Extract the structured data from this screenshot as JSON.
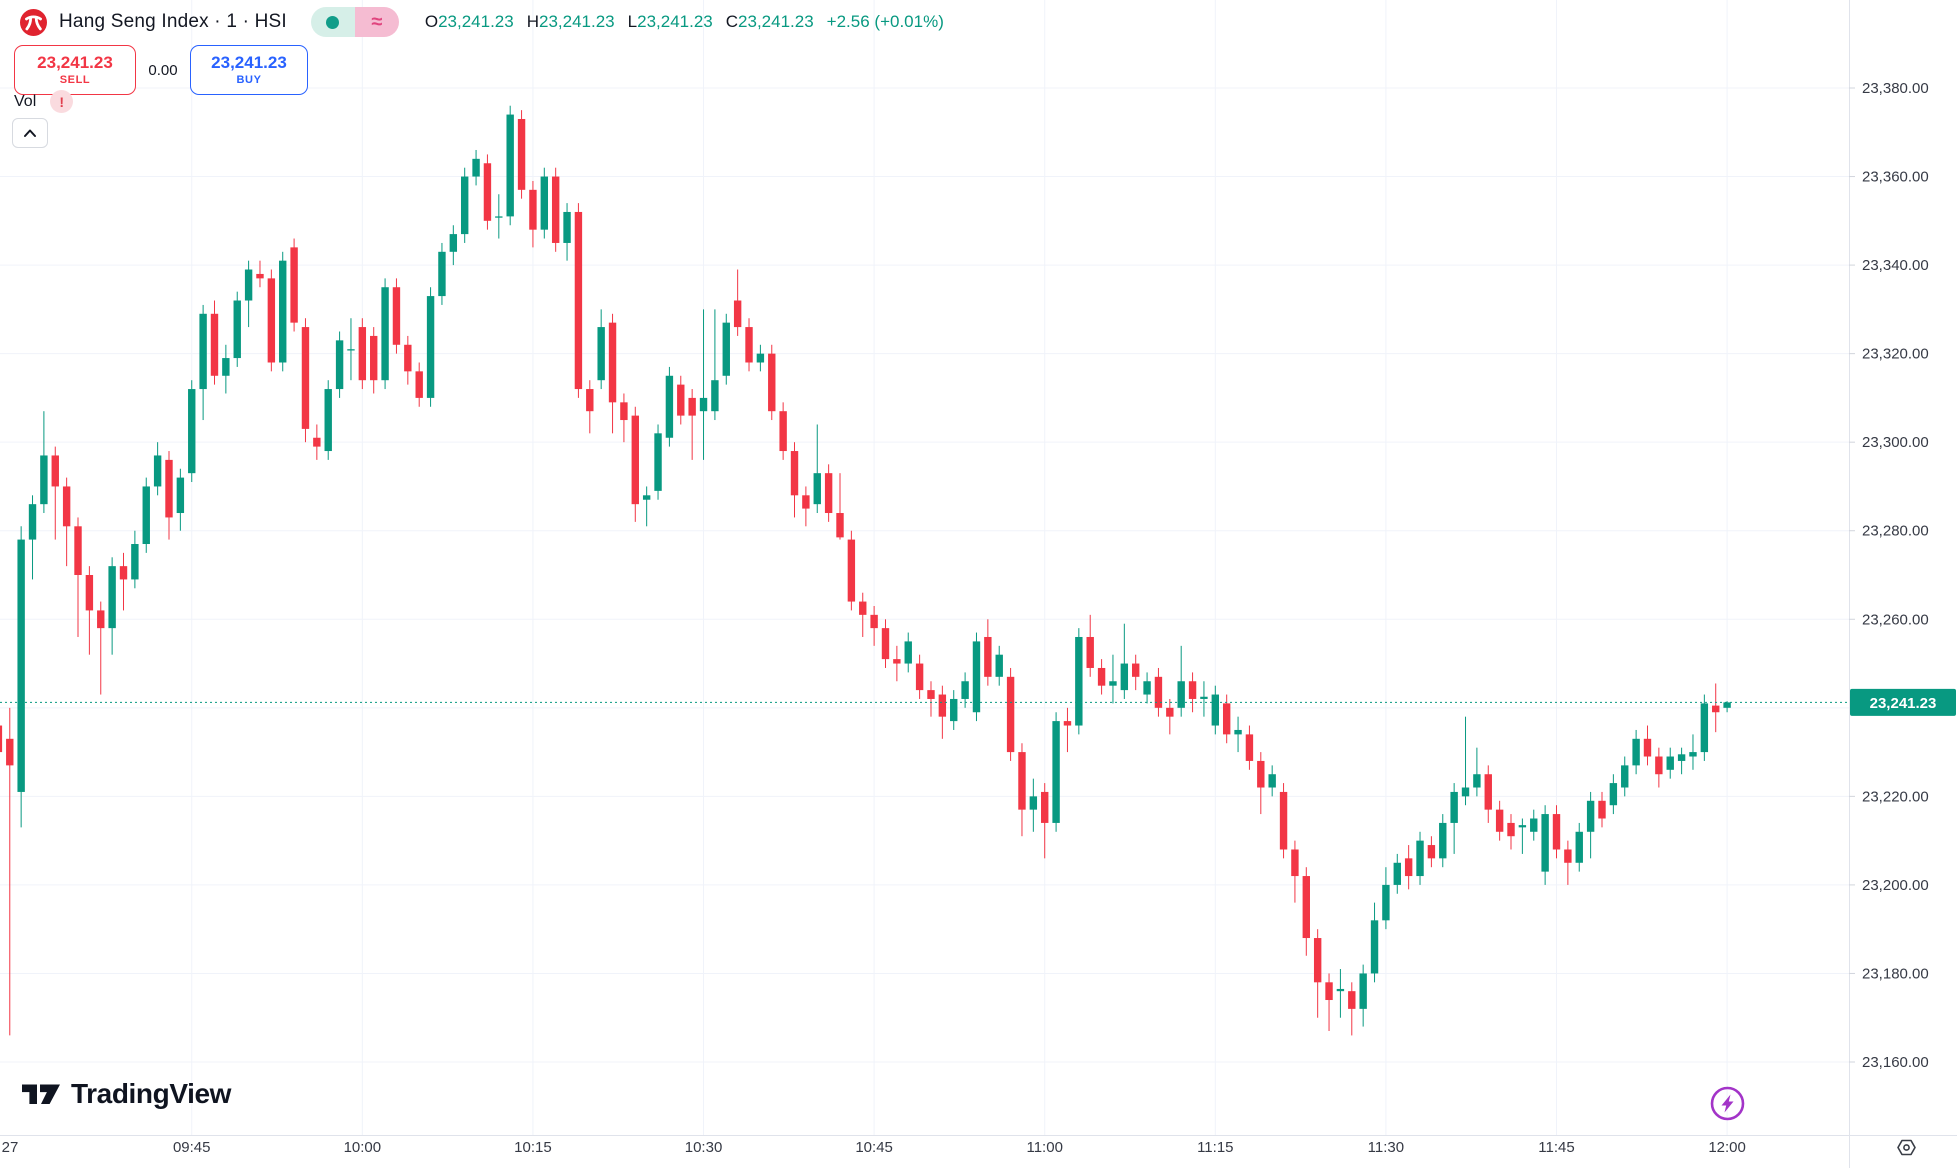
{
  "header": {
    "symbol_title": "Hang Seng Index · 1 · HSI",
    "ohlc": {
      "o_label": "O",
      "o_value": "23,241.23",
      "h_label": "H",
      "h_value": "23,241.23",
      "l_label": "L",
      "l_value": "23,241.23",
      "c_label": "C",
      "c_value": "23,241.23",
      "change": "+2.56 (+0.01%)"
    },
    "status": {
      "delayed_symbol": "≈"
    }
  },
  "trade_panel": {
    "sell_price": "23,241.23",
    "sell_label": "SELL",
    "spread": "0.00",
    "buy_price": "23,241.23",
    "buy_label": "BUY"
  },
  "indicator": {
    "label": "Vol",
    "warning": "!"
  },
  "watermark": "TradingView",
  "colors": {
    "up": "#089981",
    "down": "#f23645",
    "grid": "#f0f3fa",
    "axis_text": "#363a45",
    "axis_border": "#e0e3eb",
    "tick": "#d1d4dc",
    "tag_bg": "#089981",
    "tag_text": "#ffffff",
    "purple": "#a334c8"
  },
  "price_axis": {
    "last_price_text": "23,241.23",
    "ticks": [
      {
        "value": 23380,
        "text": "23,380.00"
      },
      {
        "value": 23360,
        "text": "23,360.00"
      },
      {
        "value": 23340,
        "text": "23,340.00"
      },
      {
        "value": 23320,
        "text": "23,320.00"
      },
      {
        "value": 23300,
        "text": "23,300.00"
      },
      {
        "value": 23280,
        "text": "23,280.00"
      },
      {
        "value": 23260,
        "text": "23,260.00"
      },
      {
        "value": 23240,
        "text": ""
      },
      {
        "value": 23220,
        "text": "23,220.00"
      },
      {
        "value": 23200,
        "text": "23,200.00"
      },
      {
        "value": 23180,
        "text": "23,180.00"
      },
      {
        "value": 23160,
        "text": "23,160.00"
      }
    ]
  },
  "time_axis": {
    "labels": [
      {
        "text": "27",
        "minute": 1,
        "grid": false
      },
      {
        "text": "09:45",
        "minute": 17,
        "grid": true
      },
      {
        "text": "10:00",
        "minute": 32,
        "grid": true
      },
      {
        "text": "10:15",
        "minute": 47,
        "grid": true
      },
      {
        "text": "10:30",
        "minute": 62,
        "grid": true
      },
      {
        "text": "10:45",
        "minute": 77,
        "grid": true
      },
      {
        "text": "11:00",
        "minute": 92,
        "grid": true
      },
      {
        "text": "11:15",
        "minute": 107,
        "grid": true
      },
      {
        "text": "11:30",
        "minute": 122,
        "grid": true
      },
      {
        "text": "11:45",
        "minute": 137,
        "grid": true
      },
      {
        "text": "12:00",
        "minute": 152,
        "grid": true
      }
    ]
  },
  "chart_data": {
    "type": "candlestick",
    "title": "Hang Seng Index",
    "symbol": "HSI",
    "interval": "1 minute",
    "start_time": "09:28",
    "end_time": "12:00",
    "last_price": 23241.23,
    "price_range": [
      23160,
      23380
    ],
    "grid_step": 20,
    "legend_position": "none",
    "grid": true,
    "candles_format": [
      "open",
      "high",
      "low",
      "close"
    ],
    "candles": [
      [
        23236,
        23238,
        23222,
        23230
      ],
      [
        23233,
        23240,
        23166,
        23227
      ],
      [
        23221,
        23281,
        23213,
        23278
      ],
      [
        23278,
        23288,
        23269,
        23286
      ],
      [
        23286,
        23307,
        23284,
        23297
      ],
      [
        23297,
        23299,
        23278,
        23290
      ],
      [
        23290,
        23292,
        23272,
        23281
      ],
      [
        23281,
        23283,
        23256,
        23270
      ],
      [
        23270,
        23272,
        23252,
        23262
      ],
      [
        23262,
        23264,
        23243,
        23258
      ],
      [
        23258,
        23274,
        23252,
        23272
      ],
      [
        23272,
        23275,
        23262,
        23269
      ],
      [
        23269,
        23280,
        23267,
        23277
      ],
      [
        23277,
        23292,
        23275,
        23290
      ],
      [
        23290,
        23300,
        23288,
        23297
      ],
      [
        23296,
        23298,
        23278,
        23283
      ],
      [
        23284,
        23294,
        23280,
        23292
      ],
      [
        23293,
        23314,
        23291,
        23312
      ],
      [
        23312,
        23331,
        23305,
        23329
      ],
      [
        23329,
        23332,
        23313,
        23315
      ],
      [
        23315,
        23322,
        23311,
        23319
      ],
      [
        23319,
        23334,
        23317,
        23332
      ],
      [
        23332,
        23341,
        23326,
        23339
      ],
      [
        23338,
        23341,
        23335,
        23337
      ],
      [
        23337,
        23339,
        23316,
        23318
      ],
      [
        23318,
        23343,
        23316,
        23341
      ],
      [
        23344,
        23346,
        23325,
        23327
      ],
      [
        23326,
        23328,
        23300,
        23303
      ],
      [
        23301,
        23304,
        23296,
        23299
      ],
      [
        23298,
        23314,
        23296,
        23312
      ],
      [
        23312,
        23325,
        23310,
        23323
      ],
      [
        23321,
        23328,
        23314,
        23321
      ],
      [
        23326,
        23328,
        23312,
        23314
      ],
      [
        23324,
        23326,
        23311,
        23314
      ],
      [
        23314,
        23337,
        23312,
        23335
      ],
      [
        23335,
        23337,
        23320,
        23322
      ],
      [
        23322,
        23324,
        23313,
        23316
      ],
      [
        23316,
        23318,
        23308,
        23310
      ],
      [
        23310,
        23335,
        23308,
        23333
      ],
      [
        23333,
        23345,
        23331,
        23343
      ],
      [
        23343,
        23349,
        23340,
        23347
      ],
      [
        23347,
        23362,
        23345,
        23360
      ],
      [
        23360,
        23366,
        23358,
        23364
      ],
      [
        23363,
        23365,
        23348,
        23350
      ],
      [
        23351,
        23356,
        23346,
        23351
      ],
      [
        23351,
        23376,
        23349,
        23374
      ],
      [
        23373,
        23375,
        23355,
        23357
      ],
      [
        23357,
        23359,
        23344,
        23348
      ],
      [
        23348,
        23362,
        23346,
        23360
      ],
      [
        23360,
        23362,
        23343,
        23345
      ],
      [
        23345,
        23354,
        23341,
        23352
      ],
      [
        23352,
        23354,
        23310,
        23312
      ],
      [
        23312,
        23314,
        23302,
        23307
      ],
      [
        23314,
        23330,
        23312,
        23326
      ],
      [
        23327,
        23329,
        23302,
        23309
      ],
      [
        23309,
        23311,
        23300,
        23305
      ],
      [
        23306,
        23308,
        23282,
        23286
      ],
      [
        23287,
        23290,
        23281,
        23288
      ],
      [
        23289,
        23304,
        23287,
        23302
      ],
      [
        23301,
        23317,
        23299,
        23315
      ],
      [
        23313,
        23315,
        23304,
        23306
      ],
      [
        23310,
        23312,
        23296,
        23306
      ],
      [
        23307,
        23330,
        23296,
        23310
      ],
      [
        23307,
        23330,
        23305,
        23314
      ],
      [
        23315,
        23329,
        23313,
        23327
      ],
      [
        23332,
        23339,
        23324,
        23326
      ],
      [
        23326,
        23328,
        23316,
        23318
      ],
      [
        23318,
        23322,
        23316,
        23320
      ],
      [
        23320,
        23322,
        23305,
        23307
      ],
      [
        23307,
        23309,
        23296,
        23298
      ],
      [
        23298,
        23300,
        23283,
        23288
      ],
      [
        23288,
        23290,
        23281,
        23285
      ],
      [
        23286,
        23304,
        23284,
        23293
      ],
      [
        23293,
        23295,
        23282,
        23284
      ],
      [
        23284,
        23293,
        23278,
        23278.5
      ],
      [
        23278,
        23280,
        23262,
        23264
      ],
      [
        23264,
        23266,
        23256,
        23261
      ],
      [
        23261,
        23263,
        23254,
        23258
      ],
      [
        23258,
        23260,
        23249,
        23251
      ],
      [
        23251,
        23254,
        23246,
        23250
      ],
      [
        23250,
        23257,
        23248,
        23255
      ],
      [
        23250,
        23252,
        23242,
        23244
      ],
      [
        23244,
        23246,
        23238,
        23242
      ],
      [
        23243,
        23245,
        23233,
        23238
      ],
      [
        23237,
        23244,
        23235,
        23242
      ],
      [
        23242,
        23248,
        23240,
        23246
      ],
      [
        23239,
        23257,
        23237,
        23255
      ],
      [
        23256,
        23260,
        23245,
        23247
      ],
      [
        23247,
        23254,
        23245,
        23252
      ],
      [
        23247,
        23249,
        23228,
        23230
      ],
      [
        23230,
        23232,
        23211,
        23217
      ],
      [
        23217,
        23224,
        23212,
        23220
      ],
      [
        23221,
        23223,
        23206,
        23214
      ],
      [
        23214,
        23239,
        23212,
        23237
      ],
      [
        23237,
        23240,
        23230,
        23236
      ],
      [
        23236,
        23258,
        23234,
        23256
      ],
      [
        23256,
        23261,
        23247,
        23249
      ],
      [
        23249,
        23251,
        23243,
        23245
      ],
      [
        23245,
        23252,
        23241,
        23246
      ],
      [
        23244,
        23259,
        23242,
        23250
      ],
      [
        23250,
        23252,
        23244,
        23247
      ],
      [
        23243,
        23248,
        23241,
        23246
      ],
      [
        23247,
        23249,
        23238,
        23240
      ],
      [
        23240,
        23242,
        23234,
        23238
      ],
      [
        23240,
        23254,
        23238,
        23246
      ],
      [
        23246,
        23248,
        23239,
        23242
      ],
      [
        23242,
        23246,
        23238,
        23242.5
      ],
      [
        23236,
        23245,
        23234,
        23243
      ],
      [
        23241,
        23243,
        23232,
        23234
      ],
      [
        23234,
        23238,
        23230,
        23235
      ],
      [
        23234,
        23236,
        23226,
        23228
      ],
      [
        23228,
        23230,
        23216,
        23222
      ],
      [
        23222,
        23227,
        23220,
        23225
      ],
      [
        23221,
        23223,
        23206,
        23208
      ],
      [
        23208,
        23210,
        23196,
        23202
      ],
      [
        23202,
        23204,
        23184,
        23188
      ],
      [
        23188,
        23190,
        23170,
        23178
      ],
      [
        23178,
        23180,
        23167,
        23174
      ],
      [
        23176,
        23181,
        23170,
        23176.5
      ],
      [
        23176,
        23178,
        23166,
        23172
      ],
      [
        23172,
        23182,
        23168,
        23180
      ],
      [
        23180,
        23196,
        23178,
        23192
      ],
      [
        23192,
        23204,
        23190,
        23200
      ],
      [
        23200,
        23207,
        23198,
        23205
      ],
      [
        23206,
        23209,
        23199,
        23202
      ],
      [
        23202,
        23212,
        23200,
        23210
      ],
      [
        23209,
        23211,
        23204,
        23206
      ],
      [
        23206,
        23216,
        23204,
        23214
      ],
      [
        23214,
        23223,
        23207,
        23221
      ],
      [
        23220,
        23238,
        23218,
        23222
      ],
      [
        23222,
        23231,
        23220,
        23225
      ],
      [
        23225,
        23227,
        23214,
        23217
      ],
      [
        23217,
        23219,
        23210,
        23212
      ],
      [
        23214,
        23216,
        23208,
        23211
      ],
      [
        23213,
        23215,
        23207,
        23213.5
      ],
      [
        23212,
        23217,
        23210,
        23215
      ],
      [
        23203,
        23218,
        23200,
        23216
      ],
      [
        23216,
        23218,
        23206,
        23208
      ],
      [
        23208,
        23210,
        23200,
        23205
      ],
      [
        23205,
        23214,
        23203,
        23212
      ],
      [
        23212,
        23221,
        23206,
        23219
      ],
      [
        23219,
        23221,
        23213,
        23215
      ],
      [
        23218,
        23225,
        23216,
        23223
      ],
      [
        23222,
        23229,
        23220,
        23227
      ],
      [
        23227,
        23235,
        23225,
        23233
      ],
      [
        23233,
        23236,
        23227,
        23229
      ],
      [
        23229,
        23231,
        23222,
        23225
      ],
      [
        23226,
        23231,
        23224,
        23229
      ],
      [
        23228,
        23231,
        23225,
        23229.5
      ],
      [
        23229,
        23234,
        23226,
        23230
      ],
      [
        23230,
        23243,
        23228,
        23241
      ],
      [
        23240.5,
        23245.5,
        23234.5,
        23239
      ],
      [
        23240,
        23241.5,
        23239,
        23241.23
      ]
    ]
  }
}
